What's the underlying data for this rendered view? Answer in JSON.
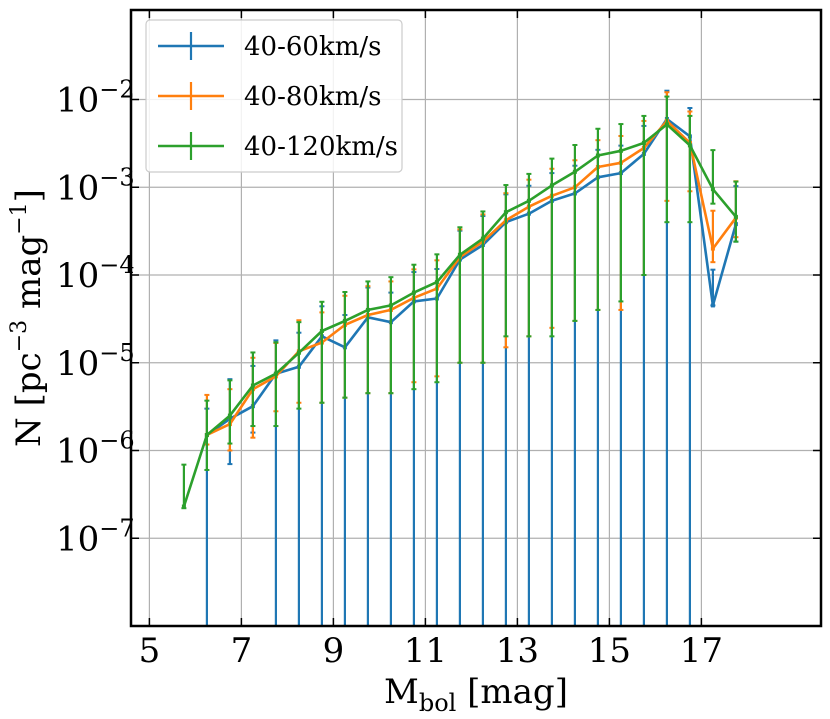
{
  "chart_data": {
    "type": "line",
    "title": "",
    "xlabel": {
      "main": "M",
      "sub": "bol",
      "rest": " [mag]"
    },
    "ylabel": {
      "pre": "N [pc",
      "sup1": "−3",
      "mid": " mag",
      "sup2": "−1",
      "post": "]"
    },
    "xlim": [
      4.6,
      19.6
    ],
    "ylim_log10": [
      -8.0,
      -0.98
    ],
    "x_ticks": [
      5,
      7,
      9,
      11,
      13,
      15,
      17
    ],
    "x_tick_labels": [
      "5",
      "7",
      "9",
      "11",
      "13",
      "15",
      "17"
    ],
    "y_ticks_log10": [
      -7,
      -6,
      -5,
      -4,
      -3,
      -2
    ],
    "y_tick_labels": [
      {
        "base": "10",
        "exp": "−7"
      },
      {
        "base": "10",
        "exp": "−6"
      },
      {
        "base": "10",
        "exp": "−5"
      },
      {
        "base": "10",
        "exp": "−4"
      },
      {
        "base": "10",
        "exp": "−3"
      },
      {
        "base": "10",
        "exp": "−2"
      }
    ],
    "grid": true,
    "legend_position": "top-left",
    "series": [
      {
        "name": "40-60km/s",
        "color": "#1f77b4",
        "x": [
          6.25,
          6.75,
          7.25,
          7.75,
          8.25,
          8.75,
          9.25,
          9.75,
          10.25,
          10.75,
          11.25,
          11.75,
          12.25,
          12.75,
          13.25,
          13.75,
          14.25,
          14.75,
          15.25,
          15.75,
          16.25,
          16.75,
          17.25,
          17.75
        ],
        "y": [
          1.5e-06,
          2.3e-06,
          3.2e-06,
          7.5e-06,
          9e-06,
          2e-05,
          1.5e-05,
          3.3e-05,
          2.9e-05,
          5e-05,
          5.4e-05,
          0.00015,
          0.00022,
          0.0004,
          0.0005,
          0.0007,
          0.00085,
          0.0013,
          0.00145,
          0.0024,
          0.006,
          0.0038,
          4.5e-05,
          0.00038
        ],
        "err_lo": [
          1.5e-06,
          1.6e-06,
          1.6e-06,
          7.5e-06,
          9e-06,
          2.4e-05,
          2e-05,
          3.9e-05,
          3.4e-05,
          5.8e-05,
          6.3e-05,
          0.00017,
          0.00025,
          0.00043,
          0.00054,
          0.00075,
          0.00091,
          0.00137,
          0.00153,
          0.0026,
          0.0066,
          0.0042,
          1e-08,
          0.00014
        ],
        "err_hi": [
          1.5e-06,
          4.2e-06,
          6e-06,
          1.05e-05,
          1.3e-05,
          2.4e-05,
          2e-05,
          3.9e-05,
          3.4e-05,
          5.8e-05,
          6.3e-05,
          0.00017,
          0.00025,
          0.00043,
          0.00054,
          0.00075,
          0.00091,
          0.00137,
          0.00153,
          0.0026,
          0.0066,
          0.0042,
          7e-05,
          0.00065
        ]
      },
      {
        "name": "40-80km/s",
        "color": "#ff7f0e",
        "x": [
          6.25,
          6.75,
          7.25,
          7.75,
          8.25,
          8.75,
          9.25,
          9.75,
          10.25,
          10.75,
          11.25,
          11.75,
          12.25,
          12.75,
          13.25,
          13.75,
          14.25,
          14.75,
          15.25,
          15.75,
          16.25,
          16.75,
          17.25,
          17.75
        ],
        "y": [
          1.5e-06,
          2e-06,
          5e-06,
          7e-06,
          1.35e-05,
          1.7e-05,
          2.7e-05,
          3.5e-05,
          4e-05,
          5.5e-05,
          7e-05,
          0.00016,
          0.00024,
          0.00042,
          0.0006,
          0.0008,
          0.001,
          0.0017,
          0.0019,
          0.0028,
          0.0057,
          0.0032,
          0.0002,
          0.00045
        ],
        "err_lo": [
          3.3e-07,
          1e-06,
          3.6e-06,
          4.2e-06,
          1e-05,
          1.35e-05,
          2.3e-05,
          3.05e-05,
          3.55e-05,
          4.9e-05,
          6.3e-05,
          0.00015,
          0.00023,
          0.000405,
          0.00058,
          0.000775,
          0.00097,
          0.00166,
          0.00186,
          0.0027,
          0.005,
          0.0023,
          6e-05,
          0.00018
        ],
        "err_hi": [
          2.8e-06,
          3e-06,
          6.4e-06,
          9.8e-06,
          1.7e-05,
          2.05e-05,
          3.1e-05,
          3.95e-05,
          4.45e-05,
          6.1e-05,
          7.7e-05,
          0.00017,
          0.00025,
          0.000435,
          0.00062,
          0.000825,
          0.00103,
          0.00174,
          0.00194,
          0.0029,
          0.0064,
          0.0041,
          0.00034,
          0.00072
        ]
      },
      {
        "name": "40-120km/s",
        "color": "#2ca02c",
        "x": [
          5.75,
          6.25,
          6.75,
          7.25,
          7.75,
          8.25,
          8.75,
          9.25,
          9.75,
          10.25,
          10.75,
          11.25,
          11.75,
          12.25,
          12.75,
          13.25,
          13.75,
          14.25,
          14.75,
          15.25,
          15.75,
          16.25,
          16.75,
          17.25,
          17.75
        ],
        "y": [
          2.3e-07,
          1.5e-06,
          2.5e-06,
          5.5e-06,
          7.5e-06,
          1.3e-05,
          2.3e-05,
          3e-05,
          4e-05,
          4.5e-05,
          6.3e-05,
          8.3e-05,
          0.00017,
          0.00026,
          0.00052,
          0.0007,
          0.00105,
          0.0015,
          0.0023,
          0.0026,
          0.0032,
          0.0052,
          0.003,
          0.00095,
          0.00046
        ],
        "err_lo": [
          1e-08,
          9e-07,
          1.3e-06,
          3.6e-06,
          5.6e-06,
          1e-05,
          1.95e-05,
          2.6e-05,
          3.55e-05,
          4.05e-05,
          5.8e-05,
          7.7e-05,
          0.00016,
          0.00025,
          0.0005,
          0.00068,
          0.00103,
          0.00147,
          0.00226,
          0.00255,
          0.0031,
          0.0048,
          0.0026,
          0.0003,
          0.00022
        ],
        "err_hi": [
          4.6e-07,
          2.2e-06,
          3.8e-06,
          7.6e-06,
          9.6e-06,
          1.6e-05,
          2.65e-05,
          3.4e-05,
          4.45e-05,
          4.95e-05,
          6.8e-05,
          8.9e-05,
          0.00018,
          0.00027,
          0.00054,
          0.00072,
          0.00107,
          0.00153,
          0.00234,
          0.00265,
          0.0033,
          0.0056,
          0.0035,
          0.0017,
          0.0007
        ]
      }
    ]
  }
}
